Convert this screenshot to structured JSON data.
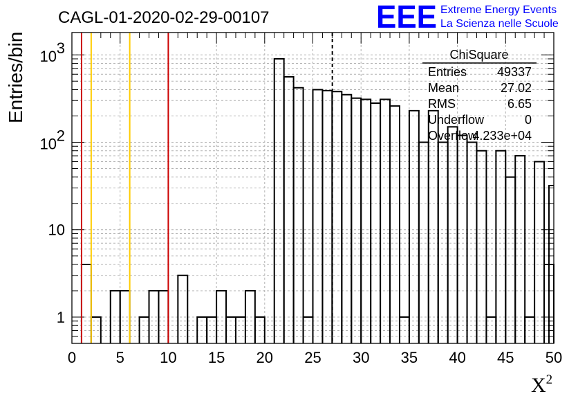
{
  "chart_data": {
    "type": "bar",
    "title": "CAGL-01-2020-02-29-00107",
    "xlabel": "X²",
    "xlabel_base": "X",
    "xlabel_sup": "2",
    "ylabel": "Entries/bin",
    "xlim": [
      0,
      50
    ],
    "ylim": [
      0.5,
      1800
    ],
    "yscale": "log",
    "grid": true,
    "bin_width": 1,
    "x_ticks": [
      "0",
      "5",
      "10",
      "15",
      "20",
      "25",
      "30",
      "35",
      "40",
      "45",
      "50"
    ],
    "y_ticks": [
      {
        "value": 1,
        "label": "1"
      },
      {
        "value": 10,
        "label": "10"
      },
      {
        "value": 100,
        "base": "10",
        "exp": "2"
      },
      {
        "value": 1000,
        "base": "10",
        "exp": "3"
      }
    ],
    "values": [
      0,
      4,
      1,
      0,
      2,
      2,
      0,
      1,
      2,
      2,
      0,
      3,
      0,
      1,
      1,
      2,
      1,
      1,
      2,
      1,
      0,
      900,
      560,
      420,
      1,
      400,
      390,
      380,
      350,
      320,
      310,
      280,
      310,
      260,
      1,
      230,
      100,
      230,
      100,
      150,
      120,
      100,
      80,
      1,
      80,
      40,
      70,
      1,
      60,
      4
    ],
    "overflow_edge_value": 32,
    "vertical_lines": [
      {
        "x": 1,
        "color": "#cc0000",
        "style": "solid"
      },
      {
        "x": 2,
        "color": "#ffcc00",
        "style": "solid"
      },
      {
        "x": 6,
        "color": "#ffcc00",
        "style": "solid"
      },
      {
        "x": 10,
        "color": "#cc0000",
        "style": "solid"
      },
      {
        "x": 27.02,
        "color": "#000000",
        "style": "dashed"
      }
    ],
    "stats_box": {
      "name": "ChiSquare",
      "rows": [
        {
          "label": "Entries",
          "value": "49337"
        },
        {
          "label": "Mean",
          "value": "27.02"
        },
        {
          "label": "RMS",
          "value": "6.65"
        },
        {
          "label": "Underflow",
          "value": "0"
        },
        {
          "label": "Overflow",
          "value": "4.233e+04"
        }
      ]
    }
  },
  "logo": {
    "big": "EEE",
    "line1": "Extreme Energy Events",
    "line2": "La Scienza nelle Scuole"
  },
  "colors": {
    "histogram_line": "#000000",
    "grid": "#b0b0b0",
    "logo_blue": "#0000ff",
    "cut_red": "#cc0000",
    "cut_yellow": "#ffcc00"
  }
}
